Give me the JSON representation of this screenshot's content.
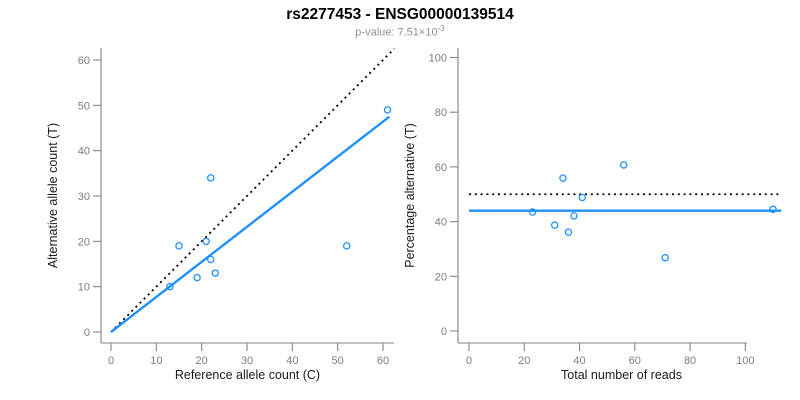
{
  "header": {
    "title": "rs2277453 - ENSG00000139514",
    "p_value_text": "p-value: 7.51×10",
    "p_value_exponent": "-3"
  },
  "colors": {
    "accent_blue": "#1E90FF",
    "dotted_black": "#000000",
    "axis_gray": "#848484",
    "tick_label_gray": "#7d7d7d",
    "axis_title_black": "#1a1a1a"
  },
  "chart_data": [
    {
      "type": "scatter",
      "name": "allele-counts-scatter",
      "xlabel": "Reference allele count (C)",
      "ylabel": "Alternative allele count (T)",
      "xlim": [
        0,
        62.4
      ],
      "ylim": [
        0,
        62.4
      ],
      "xticks": [
        0,
        10,
        20,
        30,
        40,
        50,
        60
      ],
      "yticks": [
        0,
        10,
        20,
        30,
        40,
        50,
        60
      ],
      "grid": false,
      "points": [
        [
          13,
          10
        ],
        [
          15,
          19
        ],
        [
          19,
          12
        ],
        [
          21,
          20
        ],
        [
          22,
          16
        ],
        [
          22,
          34
        ],
        [
          23,
          13
        ],
        [
          52,
          19
        ],
        [
          61,
          49
        ]
      ],
      "lines": [
        {
          "name": "identity-line",
          "style": "dotted",
          "color": "dotted_black",
          "x1": 0,
          "y1": 0,
          "x2": 62.5,
          "y2": 62.5
        },
        {
          "name": "fit-line",
          "style": "solid",
          "color": "accent_blue",
          "x1": 0,
          "y1": 0,
          "x2": 61.4,
          "y2": 47.5
        }
      ]
    },
    {
      "type": "scatter",
      "name": "percentage-alternative-scatter",
      "xlabel": "Total number of reads",
      "ylabel": "Percentage alternative (T)",
      "xlim": [
        0,
        113
      ],
      "ylim": [
        0,
        104
      ],
      "xticks": [
        0,
        20,
        40,
        60,
        80,
        100
      ],
      "yticks": [
        0,
        20,
        40,
        60,
        80,
        100
      ],
      "grid": false,
      "points": [
        [
          23,
          43.5
        ],
        [
          31,
          38.7
        ],
        [
          34,
          55.9
        ],
        [
          36,
          36.1
        ],
        [
          38,
          42.1
        ],
        [
          41,
          48.8
        ],
        [
          56,
          60.7
        ],
        [
          71,
          26.8
        ],
        [
          110,
          44.5
        ]
      ],
      "lines": [
        {
          "name": "expected-50-percent-line",
          "style": "dotted",
          "color": "dotted_black",
          "x1": 0,
          "y1": 50,
          "x2": 113,
          "y2": 50
        },
        {
          "name": "mean-percentage-line",
          "style": "solid",
          "color": "accent_blue",
          "x1": 0,
          "y1": 44,
          "x2": 113,
          "y2": 44
        }
      ]
    }
  ]
}
